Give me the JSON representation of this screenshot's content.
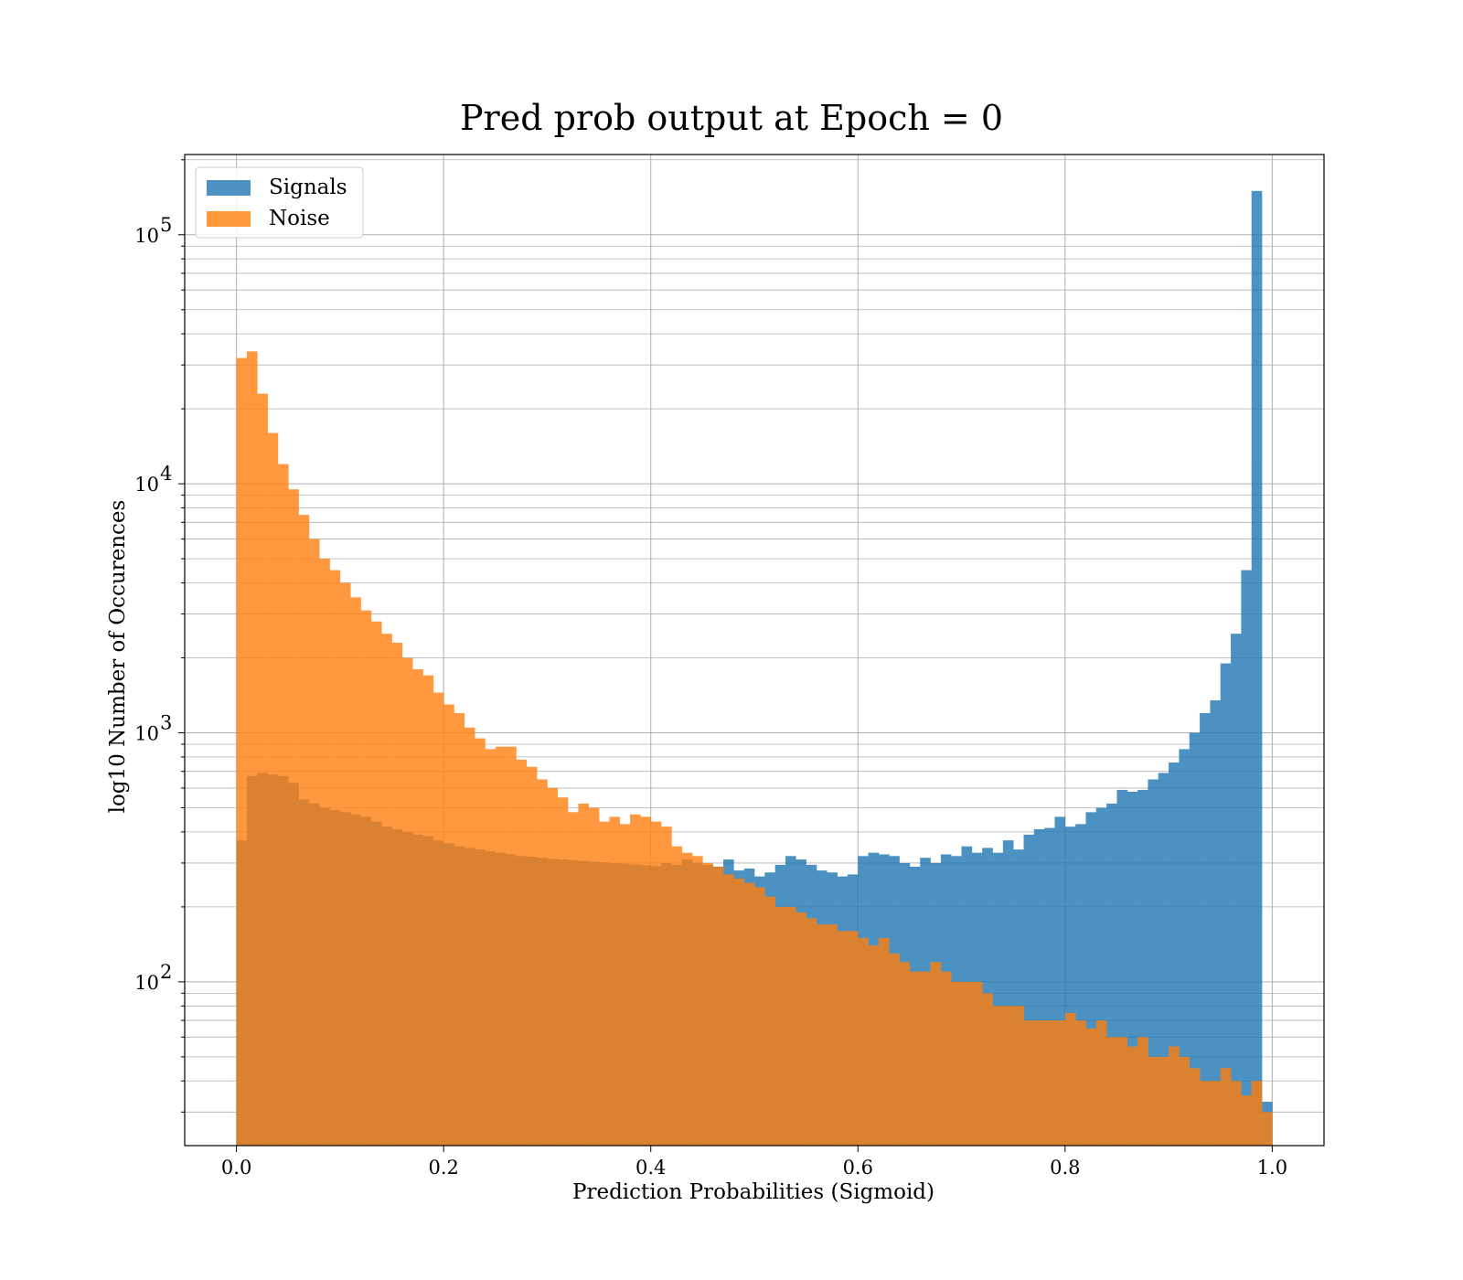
{
  "chart_data": {
    "type": "bar",
    "title": "Pred prob output at Epoch = 0",
    "xlabel": "Prediction Probabilities (Sigmoid)",
    "ylabel": "log10 Number of Occurences",
    "xlim": [
      -0.05,
      1.05
    ],
    "ylim": [
      22,
      210000
    ],
    "yscale": "log",
    "grid": true,
    "legend_position": "upper-left",
    "bins": 100,
    "bin_range": [
      0.0,
      1.0
    ],
    "x_ticks": [
      "0.0",
      "0.2",
      "0.4",
      "0.6",
      "0.8",
      "1.0"
    ],
    "y_ticks": [
      {
        "base": "10",
        "exp": "2"
      },
      {
        "base": "10",
        "exp": "3"
      },
      {
        "base": "10",
        "exp": "4"
      },
      {
        "base": "10",
        "exp": "5"
      }
    ],
    "series": [
      {
        "name": "Signals",
        "color": "#1f77b4",
        "values": [
          370,
          670,
          690,
          680,
          670,
          630,
          540,
          520,
          500,
          490,
          480,
          470,
          460,
          440,
          420,
          410,
          400,
          390,
          385,
          370,
          360,
          350,
          345,
          340,
          335,
          330,
          325,
          320,
          318,
          315,
          312,
          310,
          308,
          306,
          304,
          302,
          300,
          298,
          296,
          294,
          292,
          300,
          295,
          310,
          300,
          295,
          290,
          310,
          280,
          285,
          265,
          275,
          295,
          320,
          310,
          295,
          280,
          275,
          265,
          270,
          320,
          330,
          325,
          320,
          300,
          290,
          315,
          300,
          325,
          320,
          350,
          330,
          345,
          330,
          370,
          340,
          390,
          410,
          415,
          460,
          420,
          430,
          480,
          500,
          520,
          590,
          580,
          590,
          650,
          690,
          760,
          860,
          1000,
          1200,
          1350,
          1900,
          2500,
          4500,
          150000,
          33
        ]
      },
      {
        "name": "Noise",
        "color": "#ff7f0e",
        "values": [
          32000,
          34000,
          23000,
          16000,
          12000,
          9500,
          7500,
          6000,
          5000,
          4500,
          4000,
          3500,
          3100,
          2800,
          2500,
          2300,
          2000,
          1800,
          1700,
          1450,
          1300,
          1200,
          1050,
          950,
          860,
          880,
          880,
          780,
          730,
          650,
          600,
          550,
          480,
          520,
          500,
          440,
          460,
          430,
          470,
          460,
          440,
          420,
          350,
          330,
          320,
          300,
          290,
          270,
          260,
          250,
          240,
          220,
          200,
          200,
          190,
          180,
          170,
          170,
          160,
          160,
          150,
          140,
          150,
          130,
          120,
          110,
          110,
          120,
          110,
          100,
          100,
          100,
          90,
          80,
          80,
          80,
          70,
          70,
          70,
          70,
          75,
          70,
          65,
          70,
          60,
          60,
          55,
          60,
          50,
          50,
          55,
          50,
          45,
          40,
          40,
          45,
          40,
          35,
          40,
          30
        ]
      }
    ]
  }
}
